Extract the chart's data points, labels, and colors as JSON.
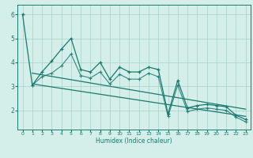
{
  "xlabel": "Humidex (Indice chaleur)",
  "xlim": [
    -0.5,
    23.5
  ],
  "ylim": [
    1.2,
    6.4
  ],
  "yticks": [
    2,
    3,
    4,
    5,
    6
  ],
  "xticks": [
    0,
    1,
    2,
    3,
    4,
    5,
    6,
    7,
    8,
    9,
    10,
    11,
    12,
    13,
    14,
    15,
    16,
    17,
    18,
    19,
    20,
    21,
    22,
    23
  ],
  "bg_color": "#d4eeea",
  "grid_color": "#aed4ce",
  "line_color": "#1a7a6e",
  "series1_x": [
    0,
    1,
    2,
    3,
    4,
    5,
    6,
    7,
    8,
    9,
    10,
    11,
    12,
    13,
    14,
    15,
    16,
    17,
    18,
    19,
    20,
    21,
    22,
    23
  ],
  "series1_y": [
    6.0,
    3.05,
    3.6,
    4.05,
    4.55,
    5.0,
    3.7,
    3.6,
    4.0,
    3.3,
    3.8,
    3.6,
    3.6,
    3.8,
    3.7,
    1.85,
    3.25,
    2.1,
    2.2,
    2.25,
    2.2,
    2.15,
    1.8,
    1.62
  ],
  "series2_x": [
    1,
    2,
    3,
    4,
    5,
    6,
    7,
    8,
    9,
    10,
    11,
    12,
    13,
    14,
    15,
    16,
    17,
    18,
    19,
    20,
    21,
    22,
    23
  ],
  "series2_y": [
    3.05,
    3.4,
    3.55,
    3.85,
    4.35,
    3.45,
    3.35,
    3.6,
    3.1,
    3.5,
    3.3,
    3.3,
    3.55,
    3.4,
    1.75,
    3.05,
    1.95,
    2.05,
    2.1,
    2.05,
    2.0,
    1.72,
    1.52
  ],
  "trend1_x": [
    1,
    23
  ],
  "trend1_y": [
    3.55,
    2.05
  ],
  "trend2_x": [
    1,
    23
  ],
  "trend2_y": [
    3.1,
    1.75
  ]
}
